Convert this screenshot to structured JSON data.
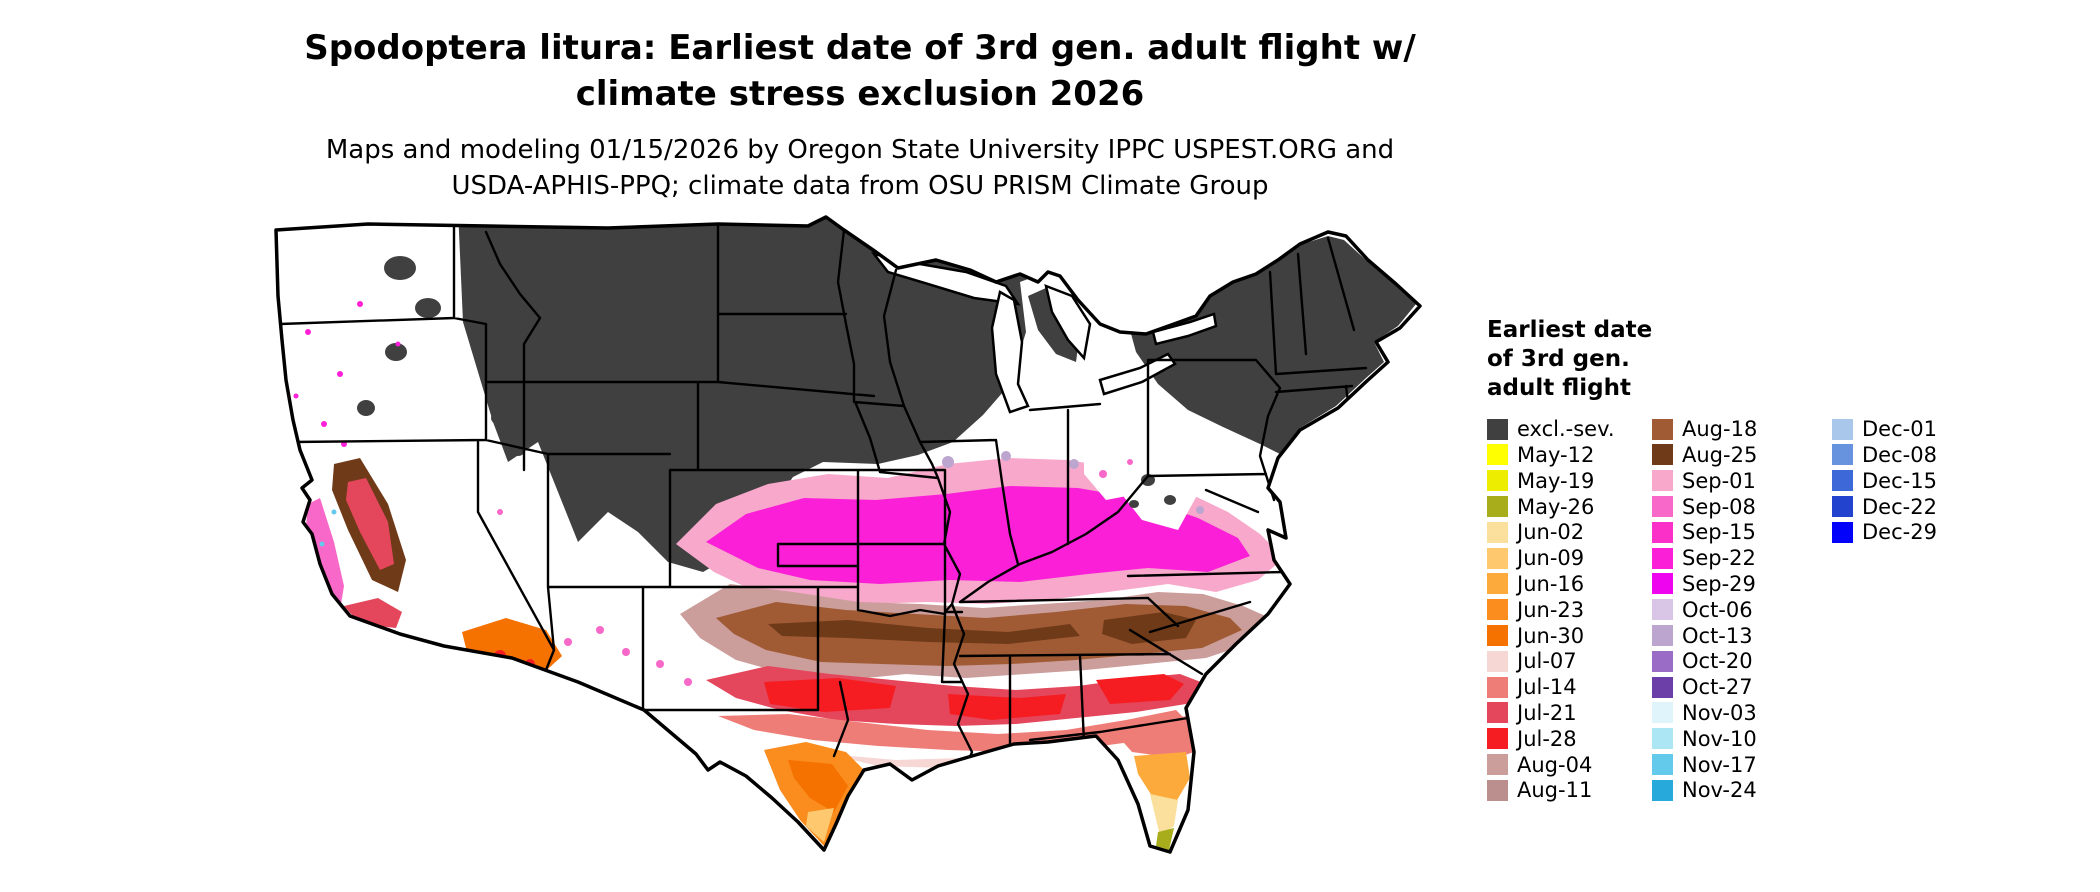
{
  "title": {
    "line1": "Spodoptera litura: Earliest date of 3rd gen. adult flight w/",
    "line2": "climate stress exclusion 2026"
  },
  "subtitle": {
    "line1": "Maps and modeling 01/15/2026 by Oregon State University IPPC USPEST.ORG and",
    "line2": "USDA-APHIS-PPQ; climate data from OSU PRISM Climate Group"
  },
  "legend": {
    "title_lines": [
      "Earliest date",
      "of 3rd gen.",
      "adult flight"
    ],
    "columns": [
      [
        {
          "label": "excl.-sev.",
          "color": "#404040"
        },
        {
          "label": "May-12",
          "color": "#FFFF00"
        },
        {
          "label": "May-19",
          "color": "#EDED00"
        },
        {
          "label": "May-26",
          "color": "#A8AD1C"
        },
        {
          "label": "Jun-02",
          "color": "#FBDF9C"
        },
        {
          "label": "Jun-09",
          "color": "#FDC86E"
        },
        {
          "label": "Jun-16",
          "color": "#FDAA3C"
        },
        {
          "label": "Jun-23",
          "color": "#FB8C1E"
        },
        {
          "label": "Jun-30",
          "color": "#F57100"
        },
        {
          "label": "Jul-07",
          "color": "#F6D7D3"
        },
        {
          "label": "Jul-14",
          "color": "#EF7D77"
        },
        {
          "label": "Jul-21",
          "color": "#E4475C"
        },
        {
          "label": "Jul-28",
          "color": "#F51D22"
        },
        {
          "label": "Aug-04",
          "color": "#CB9D9B"
        },
        {
          "label": "Aug-11",
          "color": "#BC8F8F"
        }
      ],
      [
        {
          "label": "Aug-18",
          "color": "#A05B35"
        },
        {
          "label": "Aug-25",
          "color": "#6F3A18"
        },
        {
          "label": "Sep-01",
          "color": "#F7A8CB"
        },
        {
          "label": "Sep-08",
          "color": "#F868C8"
        },
        {
          "label": "Sep-15",
          "color": "#FA30C8"
        },
        {
          "label": "Sep-22",
          "color": "#FB20D8"
        },
        {
          "label": "Sep-29",
          "color": "#EF04EF"
        },
        {
          "label": "Oct-06",
          "color": "#D9C6E6"
        },
        {
          "label": "Oct-13",
          "color": "#BCA6D0"
        },
        {
          "label": "Oct-20",
          "color": "#9A6CC6"
        },
        {
          "label": "Oct-27",
          "color": "#6C3FA8"
        },
        {
          "label": "Nov-03",
          "color": "#DFF5FB"
        },
        {
          "label": "Nov-10",
          "color": "#ACE6F4"
        },
        {
          "label": "Nov-17",
          "color": "#64CAEC"
        },
        {
          "label": "Nov-24",
          "color": "#27A9DC"
        }
      ],
      [
        {
          "label": "Dec-01",
          "color": "#A9C7EA"
        },
        {
          "label": "Dec-08",
          "color": "#6793DE"
        },
        {
          "label": "Dec-15",
          "color": "#3C68D8"
        },
        {
          "label": "Dec-22",
          "color": "#2143CE"
        },
        {
          "label": "Dec-29",
          "color": "#0202FA"
        }
      ]
    ]
  },
  "palette": {
    "excluded": "#404040",
    "may12": "#FFFF00",
    "may26": "#A8AD1C",
    "jun02": "#FBDF9C",
    "jun09": "#FDC86E",
    "jun16": "#FDAA3C",
    "jun23": "#FB8C1E",
    "jun30": "#F57100",
    "jul07": "#F6D7D3",
    "jul14": "#EF7D77",
    "jul21": "#E4475C",
    "jul28": "#F51D22",
    "aug04": "#CB9D9B",
    "aug18": "#A05B35",
    "aug25": "#6F3A18",
    "sep01": "#F7A8CB",
    "sep08": "#F868C8",
    "sep22": "#FB20D8",
    "oct13": "#BCA6D0",
    "nov17": "#64CAEC",
    "white": "#FFFFFF"
  }
}
